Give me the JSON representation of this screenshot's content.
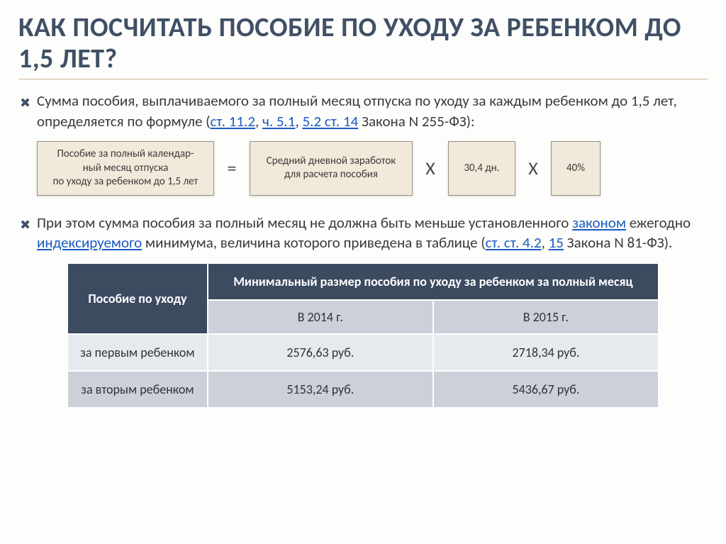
{
  "title": "КАК ПОСЧИТАТЬ ПОСОБИЕ ПО УХОДУ ЗА РЕБЕНКОМ ДО 1,5 ЛЕТ?",
  "bullet_glyph": "✖",
  "para1": {
    "pre": "Сумма пособия, выплачиваемого за полный месяц отпуска по уходу за каждым ребенком до 1,5 лет, определяется по формуле (",
    "link1": "ст. 11.2",
    "sep1": ", ",
    "link2": "ч. 5.1",
    "sep2": ", ",
    "link3": "5.2 ст. 14",
    "post": " Закона N 255-ФЗ):"
  },
  "formula": {
    "box1": "Пособие за полный календар-\nный месяц отпуска\nпо уходу за ребенком до 1,5 лет",
    "eq": "=",
    "box2": "Средний дневной заработок\nдля расчета пособия",
    "mul": "X",
    "box3": "30,4 дн.",
    "box4": "40%"
  },
  "para2": {
    "t1": "При этом сумма пособия за полный месяц не должна быть меньше установленного ",
    "link1": "законом",
    "t2": " ежегодно ",
    "link2": "индексируемого",
    "t3": " минимума, величина которого приведена в таблице (",
    "link3": "ст. ст. 4.2",
    "t4": ", ",
    "link4": "15",
    "t5": " Закона N 81-ФЗ)."
  },
  "table": {
    "head_left": "Пособие по уходу",
    "head_right": "Минимальный размер пособия по уходу за ребенком за полный месяц",
    "year1": "В 2014 г.",
    "year2": "В 2015 г.",
    "rows": [
      {
        "label": "за первым ребенком",
        "v1": "2576,63 руб.",
        "v2": "2718,34 руб."
      },
      {
        "label": "за вторым ребенком",
        "v1": "5153,24 руб.",
        "v2": "5436,67 руб."
      }
    ]
  },
  "colors": {
    "title": "#405065",
    "table_header_bg": "#3d4b61",
    "table_sub_bg": "#cbd0d9",
    "table_row_bg": "#e6e9ee",
    "formula_box_bg": "#f1e9d9",
    "link": "#1b5bc2"
  }
}
